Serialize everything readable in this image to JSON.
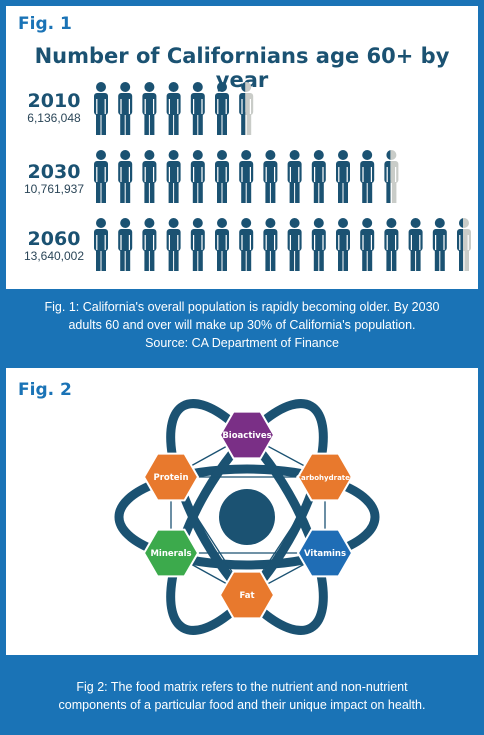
{
  "figure1": {
    "label": "Fig. 1",
    "title": "Number of Californians age 60+ by year",
    "caption_lines": [
      "Fig. 1: California's overall population is rapidly becoming older. By 2030",
      "adults 60 and over will make up 30% of California's population.",
      "Source: CA Department of Finance"
    ],
    "colors": {
      "figure": "#1b5272",
      "partial_figure": "#c9ccc8"
    }
  },
  "chart_data": {
    "type": "pictograph",
    "title": "Number of Californians age 60+ by year",
    "categories": [
      "2010",
      "2030",
      "2060"
    ],
    "values": [
      6136048,
      10761937,
      13640002
    ],
    "value_labels": [
      "6,136,048",
      "10,761,937",
      "13,640,002"
    ],
    "icon_counts": [
      7,
      13,
      16
    ]
  },
  "figure2": {
    "label": "Fig. 2",
    "nodes": [
      {
        "name": "Bioactives",
        "color": "#7a2f86"
      },
      {
        "name": "Carbohydrates",
        "color": "#e8792d"
      },
      {
        "name": "Vitamins",
        "color": "#1f6db5"
      },
      {
        "name": "Fat",
        "color": "#e8792d"
      },
      {
        "name": "Minerals",
        "color": "#3caa4c"
      },
      {
        "name": "Protein",
        "color": "#e8792d"
      }
    ],
    "center_color": "#1b5272",
    "orbit_color": "#1b5272",
    "caption_lines": [
      "Fig 2: The food matrix refers to the nutrient and non-nutrient",
      "components of a particular food and their unique impact on health."
    ]
  },
  "colors": {
    "background": "#1a73b6",
    "panel": "#ffffff",
    "label_blue": "#1a73b6"
  }
}
